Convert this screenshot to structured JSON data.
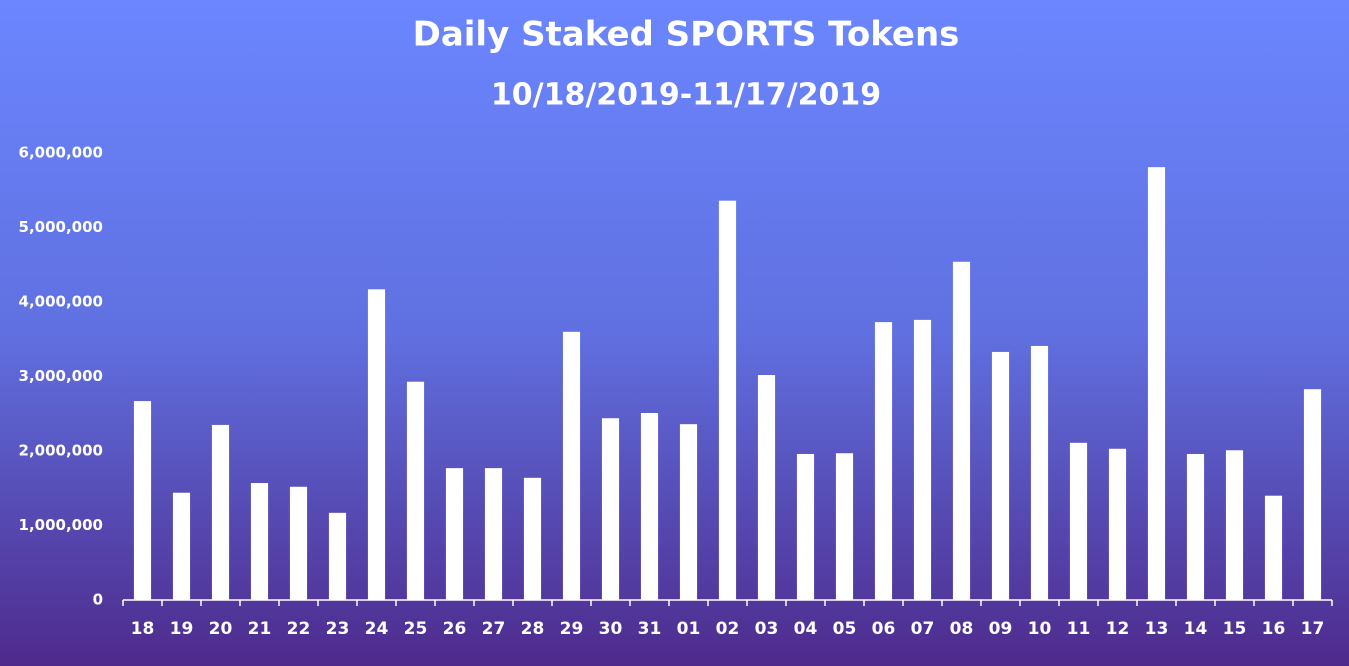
{
  "chart_data": {
    "type": "bar",
    "title": "Daily Staked SPORTS Tokens",
    "subtitle": "10/18/2019-11/17/2019",
    "categories": [
      "18",
      "19",
      "20",
      "21",
      "22",
      "23",
      "24",
      "25",
      "26",
      "27",
      "28",
      "29",
      "30",
      "31",
      "01",
      "02",
      "03",
      "04",
      "05",
      "06",
      "07",
      "08",
      "09",
      "10",
      "11",
      "12",
      "13",
      "14",
      "15",
      "16",
      "17"
    ],
    "values": [
      2670000,
      1440000,
      2350000,
      1570000,
      1520000,
      1170000,
      4170000,
      2930000,
      1770000,
      1770000,
      1640000,
      3600000,
      2440000,
      2510000,
      2360000,
      5360000,
      3020000,
      1960000,
      1970000,
      3730000,
      3760000,
      4540000,
      3330000,
      3410000,
      2110000,
      2030000,
      5810000,
      1960000,
      2010000,
      1400000,
      2830000
    ],
    "color": "#ffffff",
    "ylim": [
      0,
      6000000
    ],
    "yticks": [
      0,
      {
        "value": 1000000,
        "label": "1,000,000"
      },
      {
        "value": 2000000,
        "label": "2,000,000"
      },
      {
        "value": 3000000,
        "label": "3,000,000"
      },
      {
        "value": 4000000,
        "label": "4,000,000"
      },
      {
        "value": 5000000,
        "label": "5,000,000"
      },
      {
        "value": 6000000,
        "label": "6,000,000"
      }
    ],
    "grid": false
  }
}
